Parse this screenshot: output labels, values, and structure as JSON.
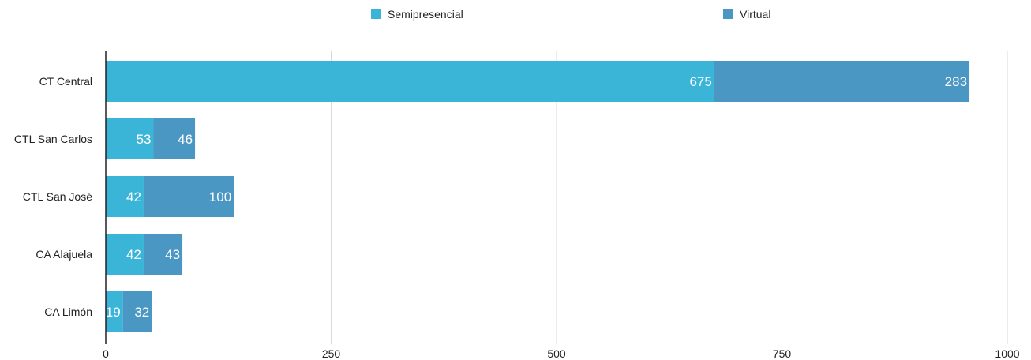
{
  "chart_data": {
    "type": "bar",
    "orientation": "horizontal",
    "stacked": true,
    "categories": [
      "CT Central",
      "CTL San Carlos",
      "CTL San José",
      "CA Alajuela",
      "CA Limón"
    ],
    "series": [
      {
        "name": "Semipresencial",
        "values": [
          675,
          53,
          42,
          42,
          19
        ],
        "color": "#3ab5d8"
      },
      {
        "name": "Virtual",
        "values": [
          283,
          46,
          100,
          43,
          32
        ],
        "color": "#4a97c4"
      }
    ],
    "xlim": [
      0,
      1000
    ],
    "xticks": [
      0,
      250,
      500,
      750,
      1000
    ],
    "grid": "vertical",
    "legend_position": "top",
    "data_labels": true
  }
}
